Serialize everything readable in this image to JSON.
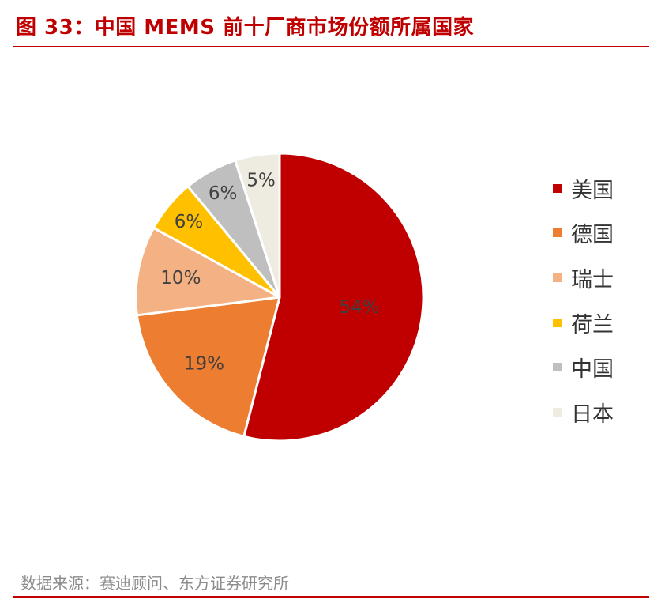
{
  "header": {
    "title": "图 33：中国 MEMS 前十厂商市场份额所属国家"
  },
  "footer": {
    "source": "数据来源：赛迪顾问、东方证券研究所"
  },
  "chart_data": {
    "type": "pie",
    "title": "",
    "legend_placement": "right",
    "slices": [
      {
        "name": "美国",
        "value": 54,
        "label": "54%",
        "color": "#c00000",
        "label_color": "#404040"
      },
      {
        "name": "德国",
        "value": 19,
        "label": "19%",
        "color": "#ed7d31",
        "label_color": "#404040"
      },
      {
        "name": "瑞士",
        "value": 10,
        "label": "10%",
        "color": "#f4b183",
        "label_color": "#404040"
      },
      {
        "name": "荷兰",
        "value": 6,
        "label": "6%",
        "color": "#ffc000",
        "label_color": "#404040"
      },
      {
        "name": "中国",
        "value": 6,
        "label": "6%",
        "color": "#bfbfbf",
        "label_color": "#404040"
      },
      {
        "name": "日本",
        "value": 5,
        "label": "5%",
        "color": "#eeece1",
        "label_color": "#404040"
      }
    ]
  }
}
